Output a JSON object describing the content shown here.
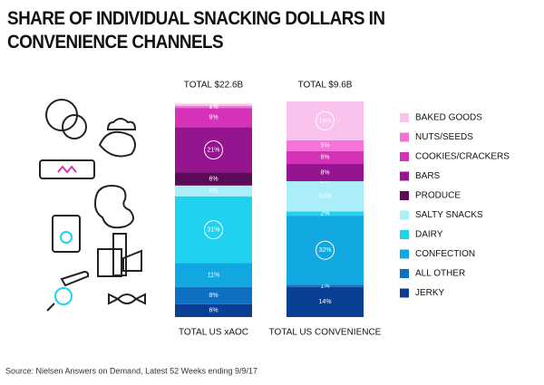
{
  "chart_data": {
    "type": "stacked-bar",
    "title": "SHARE OF INDIVIDUAL SNACKING DOLLARS IN CONVENIENCE CHANNELS",
    "categories": [
      "TOTAL US xAOC",
      "TOTAL US CONVENIENCE"
    ],
    "totals": [
      "TOTAL $22.6B",
      "TOTAL $9.6B"
    ],
    "ylim": [
      0,
      100
    ],
    "series": [
      {
        "name": "BAKED GOODS",
        "color": "#f9c3ee",
        "values": [
          1,
          18
        ],
        "value_labels": [
          "1%",
          "18%"
        ]
      },
      {
        "name": "NUTS/SEEDS",
        "color": "#f472da",
        "values": [
          1,
          5
        ],
        "value_labels": [
          "1%",
          "5%"
        ]
      },
      {
        "name": "COOKIES/CRACKERS",
        "color": "#d531b9",
        "values": [
          9,
          6
        ],
        "value_labels": [
          "9%",
          "6%"
        ]
      },
      {
        "name": "BARS",
        "color": "#951490",
        "values": [
          21,
          8
        ],
        "value_labels": [
          "21%",
          "8%"
        ]
      },
      {
        "name": "PRODUCE",
        "color": "#5c0b59",
        "values": [
          6,
          0
        ],
        "value_labels": [
          "6%",
          "0%"
        ]
      },
      {
        "name": "SALTY SNACKS",
        "color": "#a9eef8",
        "values": [
          5,
          14
        ],
        "value_labels": [
          "5%",
          "14%"
        ]
      },
      {
        "name": "DAIRY",
        "color": "#1fd3f0",
        "values": [
          31,
          2
        ],
        "value_labels": [
          "31%",
          "2%"
        ]
      },
      {
        "name": "CONFECTION",
        "color": "#11a8e2",
        "values": [
          11,
          32
        ],
        "value_labels": [
          "11%",
          "32%"
        ]
      },
      {
        "name": "ALL OTHER",
        "color": "#0d70c2",
        "values": [
          8,
          1
        ],
        "value_labels": [
          "8%",
          "1%"
        ]
      },
      {
        "name": "JERKY",
        "color": "#0a3f95",
        "values": [
          6,
          14
        ],
        "value_labels": [
          "6%",
          "14%"
        ]
      }
    ],
    "source": "Source: Nielsen Answers on Demand, Latest 52 Weeks ending 9/9/17"
  }
}
